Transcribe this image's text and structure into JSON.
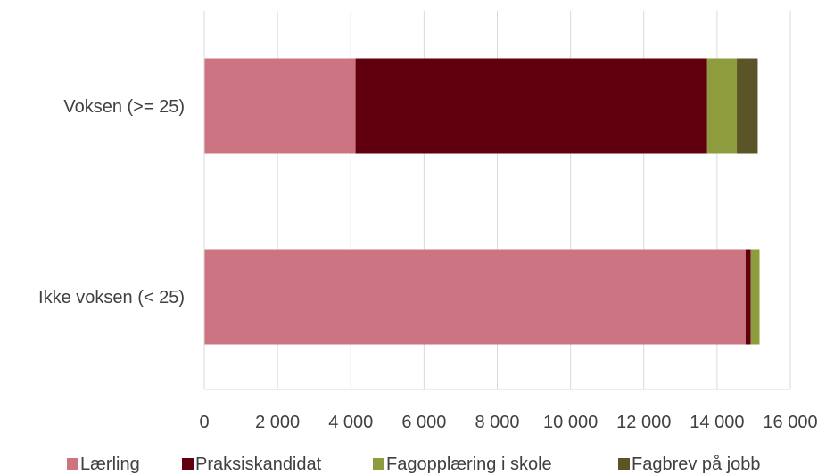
{
  "chart_data": {
    "type": "bar",
    "orientation": "horizontal",
    "stacked": true,
    "categories": [
      "Voksen (>= 25)",
      "Ikke voksen (< 25)"
    ],
    "series": [
      {
        "name": "Lærling",
        "color": "#cd7482",
        "values": [
          4130,
          14780
        ]
      },
      {
        "name": "Praksiskandidat",
        "color": "#60000f",
        "values": [
          9600,
          140
        ]
      },
      {
        "name": "Fagopplæring i skole",
        "color": "#8f9c3e",
        "values": [
          810,
          240
        ]
      },
      {
        "name": "Fagbrev på jobb",
        "color": "#5a5428",
        "values": [
          570,
          0
        ]
      }
    ],
    "xlim": [
      0,
      16000
    ],
    "xticks": [
      0,
      2000,
      4000,
      6000,
      8000,
      10000,
      12000,
      14000,
      16000
    ],
    "xtick_labels": [
      "0",
      "2 000",
      "4 000",
      "6 000",
      "8 000",
      "10 000",
      "12 000",
      "14 000",
      "16 000"
    ],
    "grid": true,
    "legend_position": "bottom",
    "title": "",
    "xlabel": "",
    "ylabel": ""
  }
}
